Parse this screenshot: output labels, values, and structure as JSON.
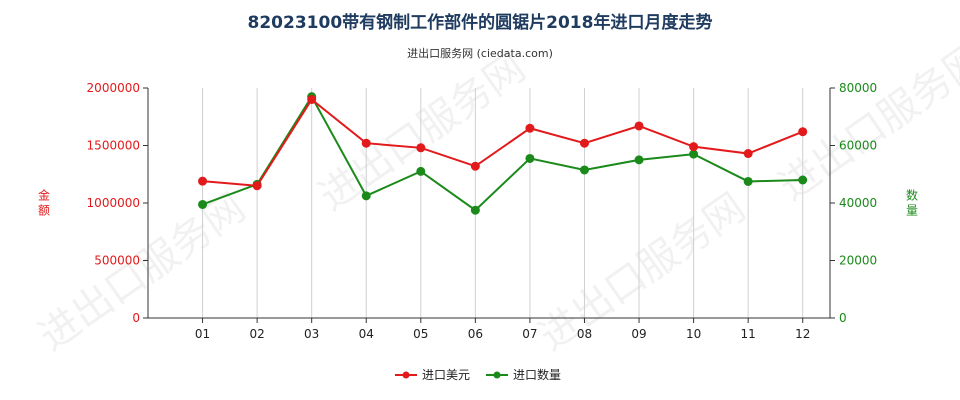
{
  "title": "82023100带有钢制工作部件的圆锯片2018年进口月度走势",
  "subtitle": "进出口服务网 (ciedata.com)",
  "watermark": "进出口服务网",
  "colors": {
    "amount": "#e31a1c",
    "quantity": "#1a8a1a",
    "axis": "#333333",
    "grid": "#d0d0d0"
  },
  "chart_data": {
    "type": "line",
    "categories": [
      "01",
      "02",
      "03",
      "04",
      "05",
      "06",
      "07",
      "08",
      "09",
      "10",
      "11",
      "12"
    ],
    "series": [
      {
        "name": "进口美元",
        "axis": "left",
        "values": [
          1190000,
          1150000,
          1900000,
          1520000,
          1480000,
          1320000,
          1650000,
          1520000,
          1670000,
          1490000,
          1430000,
          1620000
        ]
      },
      {
        "name": "进口数量",
        "axis": "right",
        "values": [
          39500,
          46500,
          77000,
          42500,
          51000,
          37500,
          55500,
          51500,
          55000,
          57000,
          47500,
          48000
        ]
      }
    ],
    "y_left": {
      "label": "金额",
      "lim": [
        0,
        2000000
      ],
      "ticks": [
        "0",
        "500000",
        "1000000",
        "1500000",
        "2000000"
      ]
    },
    "y_right": {
      "label": "数量",
      "lim": [
        0,
        80000
      ],
      "ticks": [
        "0",
        "20000",
        "40000",
        "60000",
        "80000"
      ]
    },
    "grid": "vertical",
    "legend": "bottom-center"
  }
}
